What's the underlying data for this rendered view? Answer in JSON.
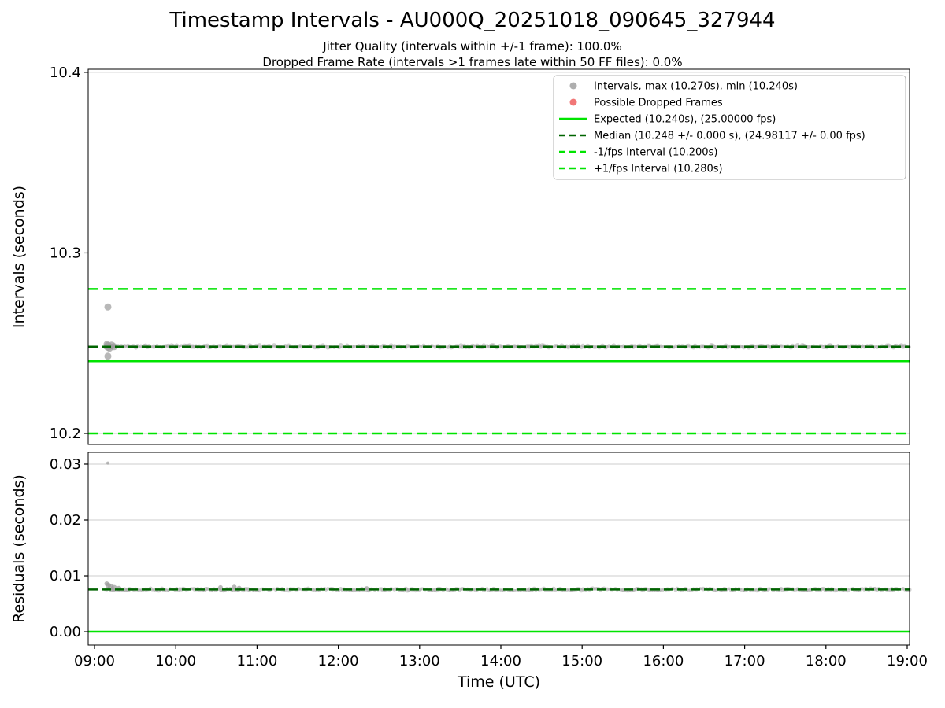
{
  "colors": {
    "lime": "#00e400",
    "darkgreen": "#006400",
    "gray": "#9a9a9a",
    "red": "#ee5555",
    "grid": "#cccccc",
    "spine": "#000000"
  },
  "chart_data": [
    {
      "type": "scatter",
      "title": "Timestamp Intervals - AU000Q_20251018_090645_327944",
      "subtitles": [
        "Jitter Quality (intervals within +/-1 frame): 100.0%",
        "Dropped Frame Rate (intervals >1 frames late within 50 FF files): 0.0%"
      ],
      "ylabel": "Intervals (seconds)",
      "ylim": [
        10.1939,
        10.4017
      ],
      "yticks": [
        {
          "v": 10.2,
          "label": "10.2"
        },
        {
          "v": 10.3,
          "label": "10.3"
        },
        {
          "v": 10.4,
          "label": "10.4"
        }
      ],
      "legend": [
        {
          "marker": "dot",
          "color": "gray",
          "dash": false,
          "label": "Intervals, max (10.270s), min (10.240s)"
        },
        {
          "marker": "dot",
          "color": "red",
          "dash": false,
          "label": "Possible Dropped Frames"
        },
        {
          "marker": "line",
          "color": "lime",
          "dash": false,
          "label": "Expected (10.240s), (25.00000 fps)"
        },
        {
          "marker": "line",
          "color": "darkgreen",
          "dash": true,
          "label": "Median (10.248 +/- 0.000 s), (24.98117 +/- 0.00 fps)"
        },
        {
          "marker": "line",
          "color": "lime",
          "dash": true,
          "label": "-1/fps Interval (10.200s)"
        },
        {
          "marker": "line",
          "color": "lime",
          "dash": true,
          "label": "+1/fps Interval (10.280s)"
        }
      ],
      "lines": [
        {
          "name": "plus-1fps-interval",
          "y": 10.28,
          "color": "lime",
          "dash": true,
          "width": 2.5
        },
        {
          "name": "median",
          "y": 10.248,
          "color": "darkgreen",
          "dash": true,
          "width": 2.5
        },
        {
          "name": "expected",
          "y": 10.24,
          "color": "lime",
          "dash": false,
          "width": 2.5
        },
        {
          "name": "minus-1fps-interval",
          "y": 10.2,
          "color": "lime",
          "dash": true,
          "width": 2.5
        }
      ],
      "band": {
        "y": 10.2482,
        "x_start": 9.13,
        "x_end": 19.03,
        "jitter": 0.0006,
        "step": 0.02,
        "r": 2.4
      },
      "points": [
        {
          "x": 9.165,
          "y": 10.27,
          "r": 4.5
        },
        {
          "x": 9.15,
          "y": 10.2495,
          "r": 4
        },
        {
          "x": 9.165,
          "y": 10.2482,
          "r": 5.5
        },
        {
          "x": 9.185,
          "y": 10.2472,
          "r": 4.5
        },
        {
          "x": 9.21,
          "y": 10.2487,
          "r": 5
        },
        {
          "x": 9.24,
          "y": 10.248,
          "r": 4.5
        },
        {
          "x": 9.165,
          "y": 10.2428,
          "r": 4.5
        }
      ]
    },
    {
      "type": "scatter",
      "ylabel": "Residuals (seconds)",
      "ylim": [
        -0.00239,
        0.03211
      ],
      "yticks": [
        {
          "v": 0.0,
          "label": "0.00"
        },
        {
          "v": 0.01,
          "label": "0.01"
        },
        {
          "v": 0.02,
          "label": "0.02"
        },
        {
          "v": 0.03,
          "label": "0.03"
        }
      ],
      "lines": [
        {
          "name": "median-residual",
          "y": 0.00755,
          "color": "darkgreen",
          "dash": true,
          "width": 2.5
        },
        {
          "name": "zero-residual",
          "y": 0.0,
          "color": "lime",
          "dash": false,
          "width": 2.5
        }
      ],
      "band": {
        "y": 0.00755,
        "x_start": 9.13,
        "x_end": 19.03,
        "jitter": 0.0002,
        "step": 0.02,
        "r": 2.2
      },
      "points": [
        {
          "x": 9.165,
          "y": 0.0302,
          "r": 2
        },
        {
          "x": 9.15,
          "y": 0.0086,
          "r": 3
        },
        {
          "x": 9.17,
          "y": 0.0083,
          "r": 3.5
        },
        {
          "x": 9.2,
          "y": 0.008,
          "r": 4
        },
        {
          "x": 9.24,
          "y": 0.0078,
          "r": 4
        },
        {
          "x": 9.3,
          "y": 0.0077,
          "r": 3.5
        },
        {
          "x": 10.55,
          "y": 0.0079,
          "r": 3
        },
        {
          "x": 10.72,
          "y": 0.008,
          "r": 3
        },
        {
          "x": 10.78,
          "y": 0.0078,
          "r": 3
        },
        {
          "x": 12.35,
          "y": 0.0078,
          "r": 2.5
        }
      ],
      "xlabel": "Time (UTC)",
      "xlim": [
        8.9225,
        19.0291
      ],
      "xticks": [
        {
          "v": 9,
          "label": "09:00"
        },
        {
          "v": 10,
          "label": "10:00"
        },
        {
          "v": 11,
          "label": "11:00"
        },
        {
          "v": 12,
          "label": "12:00"
        },
        {
          "v": 13,
          "label": "13:00"
        },
        {
          "v": 14,
          "label": "14:00"
        },
        {
          "v": 15,
          "label": "15:00"
        },
        {
          "v": 16,
          "label": "16:00"
        },
        {
          "v": 17,
          "label": "17:00"
        },
        {
          "v": 18,
          "label": "18:00"
        },
        {
          "v": 19,
          "label": "19:00"
        }
      ]
    }
  ]
}
